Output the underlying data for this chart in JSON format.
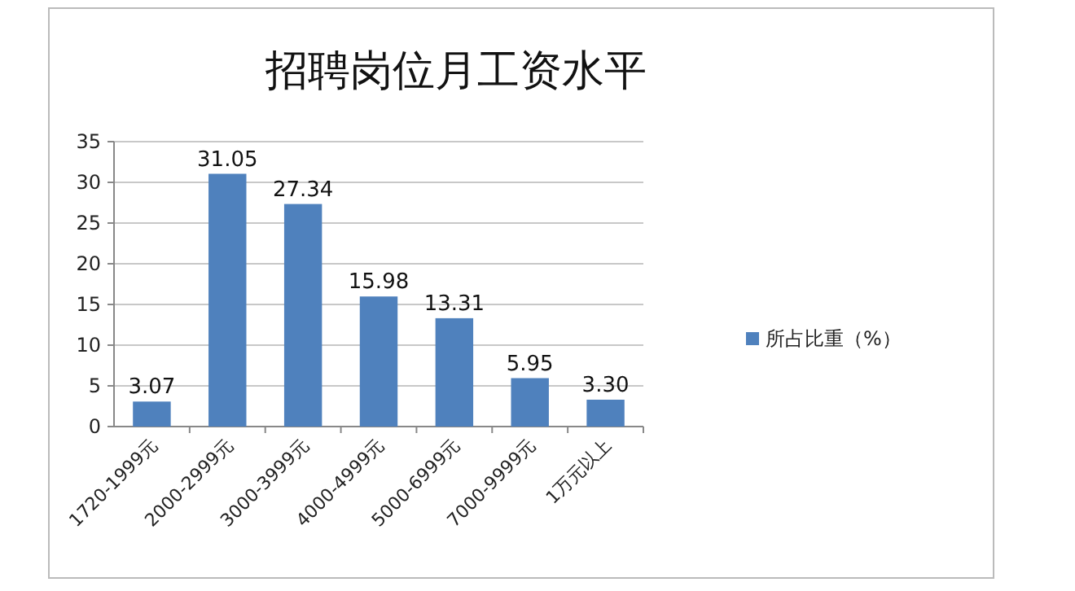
{
  "chart_data": {
    "type": "bar",
    "title": "招聘岗位月工资水平",
    "categories": [
      "1720-1999元",
      "2000-2999元",
      "3000-3999元",
      "4000-4999元",
      "5000-6999元",
      "7000-9999元",
      "1万元以上"
    ],
    "series": [
      {
        "name": "所占比重（%）",
        "color": "#4f81bd",
        "values": [
          3.07,
          31.05,
          27.34,
          15.98,
          13.31,
          5.95,
          3.3
        ],
        "value_labels": [
          "3.07",
          "31.05",
          "27.34",
          "15.98",
          "13.31",
          "5.95",
          "3.30"
        ]
      }
    ],
    "ylim": [
      0,
      35
    ],
    "yticks": [
      0,
      5,
      10,
      15,
      20,
      25,
      30,
      35
    ],
    "grid": "y",
    "legend": "right"
  }
}
